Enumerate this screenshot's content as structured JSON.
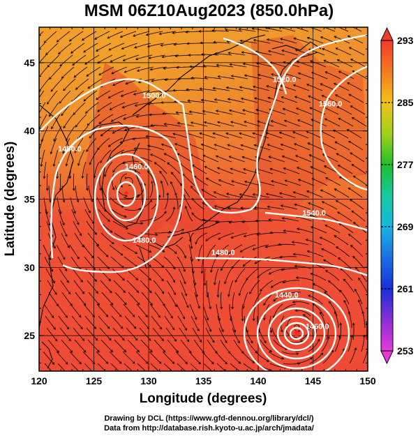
{
  "title": "MSM 06Z10Aug2023 (850.0hPa)",
  "axes": {
    "xlabel": "Longitude (degrees)",
    "ylabel": "Latitude (degrees)",
    "xlim": [
      120,
      150
    ],
    "ylim": [
      22.4,
      47.6
    ],
    "xticks": [
      "120",
      "125",
      "130",
      "135",
      "140",
      "145",
      "150"
    ],
    "xtick_values": [
      120,
      125,
      130,
      135,
      140,
      145,
      150
    ],
    "yticks": [
      "25",
      "30",
      "35",
      "40",
      "45"
    ],
    "ytick_values": [
      25,
      30,
      35,
      40,
      45
    ]
  },
  "colorbar": {
    "labels": [
      "293",
      "285",
      "277",
      "269",
      "261",
      "253"
    ],
    "values": [
      293,
      285,
      277,
      269,
      261,
      253
    ],
    "min": 253,
    "max": 293
  },
  "contours": [
    {
      "label": "1500.0",
      "lon": 130.5,
      "lat": 42.4
    },
    {
      "label": "1520.0",
      "lon": 142.4,
      "lat": 43.6
    },
    {
      "label": "1560.0",
      "lon": 146.6,
      "lat": 41.8
    },
    {
      "label": "1480.0",
      "lon": 122.8,
      "lat": 38.5
    },
    {
      "label": "1460.0",
      "lon": 128.9,
      "lat": 37.2
    },
    {
      "label": "1480.0",
      "lon": 129.6,
      "lat": 31.8
    },
    {
      "label": "1540.0",
      "lon": 145.1,
      "lat": 33.8
    },
    {
      "label": "1480.0",
      "lon": 136.8,
      "lat": 30.9
    },
    {
      "label": "1440.0",
      "lon": 142.6,
      "lat": 27.8
    },
    {
      "label": "1460.0",
      "lon": 145.4,
      "lat": 25.5
    }
  ],
  "typhoon_centers": [
    {
      "name": "low-center-west",
      "lon": 128.1,
      "lat": 36.3
    },
    {
      "name": "typhoon-center-east",
      "lon": 143.6,
      "lat": 25.6
    }
  ],
  "colors": {
    "field_warm": "#f04a2e",
    "field_orange": "#f29a2a",
    "field_light": "#f57a2c",
    "contour": "#ffffff",
    "stream": "#000000",
    "land": "#e0402a"
  },
  "credits": {
    "line1": "Drawing by DCL (https://www.gfd-dennou.org/library/dcl/)",
    "line2": "Data from http://database.rish.kyoto-u.ac.jp/arch/jmadata/"
  }
}
